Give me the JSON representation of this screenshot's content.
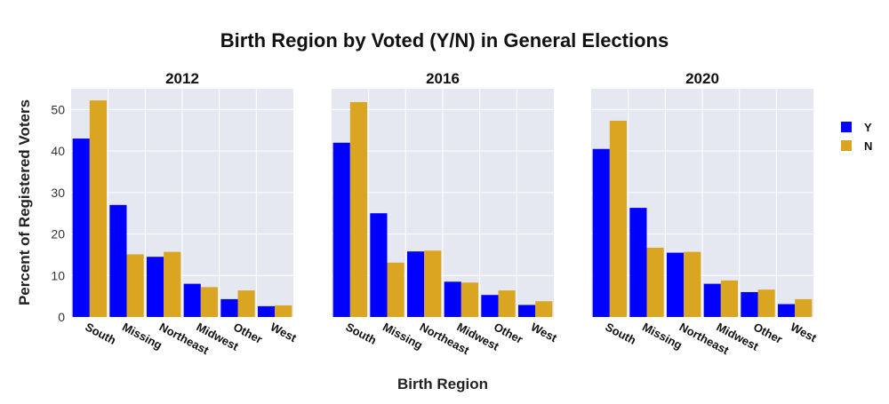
{
  "chart_data": {
    "type": "bar",
    "title": "Birth Region by Voted (Y/N) in General Elections",
    "xlabel": "Birth Region",
    "ylabel": "Percent of Registered Voters",
    "ylim": [
      0,
      55
    ],
    "yticks": [
      0,
      10,
      20,
      30,
      40,
      50
    ],
    "grid": true,
    "legend": "top-right",
    "categories": [
      "South",
      "Missing",
      "Northeast",
      "Midwest",
      "Other",
      "West"
    ],
    "series_meta": [
      {
        "name": "Y",
        "color": "#0000ff"
      },
      {
        "name": "N",
        "color": "#daa520"
      }
    ],
    "panels": [
      {
        "title": "2012",
        "series": [
          {
            "name": "Y",
            "values": [
              43.0,
              27.0,
              14.5,
              8.0,
              4.3,
              2.6
            ]
          },
          {
            "name": "N",
            "values": [
              52.2,
              15.1,
              15.7,
              7.2,
              6.4,
              2.8
            ]
          }
        ]
      },
      {
        "title": "2016",
        "series": [
          {
            "name": "Y",
            "values": [
              42.0,
              25.0,
              15.8,
              8.5,
              5.3,
              2.9
            ]
          },
          {
            "name": "N",
            "values": [
              51.8,
              13.1,
              16.0,
              8.3,
              6.4,
              3.8
            ]
          }
        ]
      },
      {
        "title": "2020",
        "series": [
          {
            "name": "Y",
            "values": [
              40.5,
              26.3,
              15.5,
              8.0,
              6.0,
              3.1
            ]
          },
          {
            "name": "N",
            "values": [
              47.3,
              16.7,
              15.7,
              8.8,
              6.6,
              4.3
            ]
          }
        ]
      }
    ]
  }
}
